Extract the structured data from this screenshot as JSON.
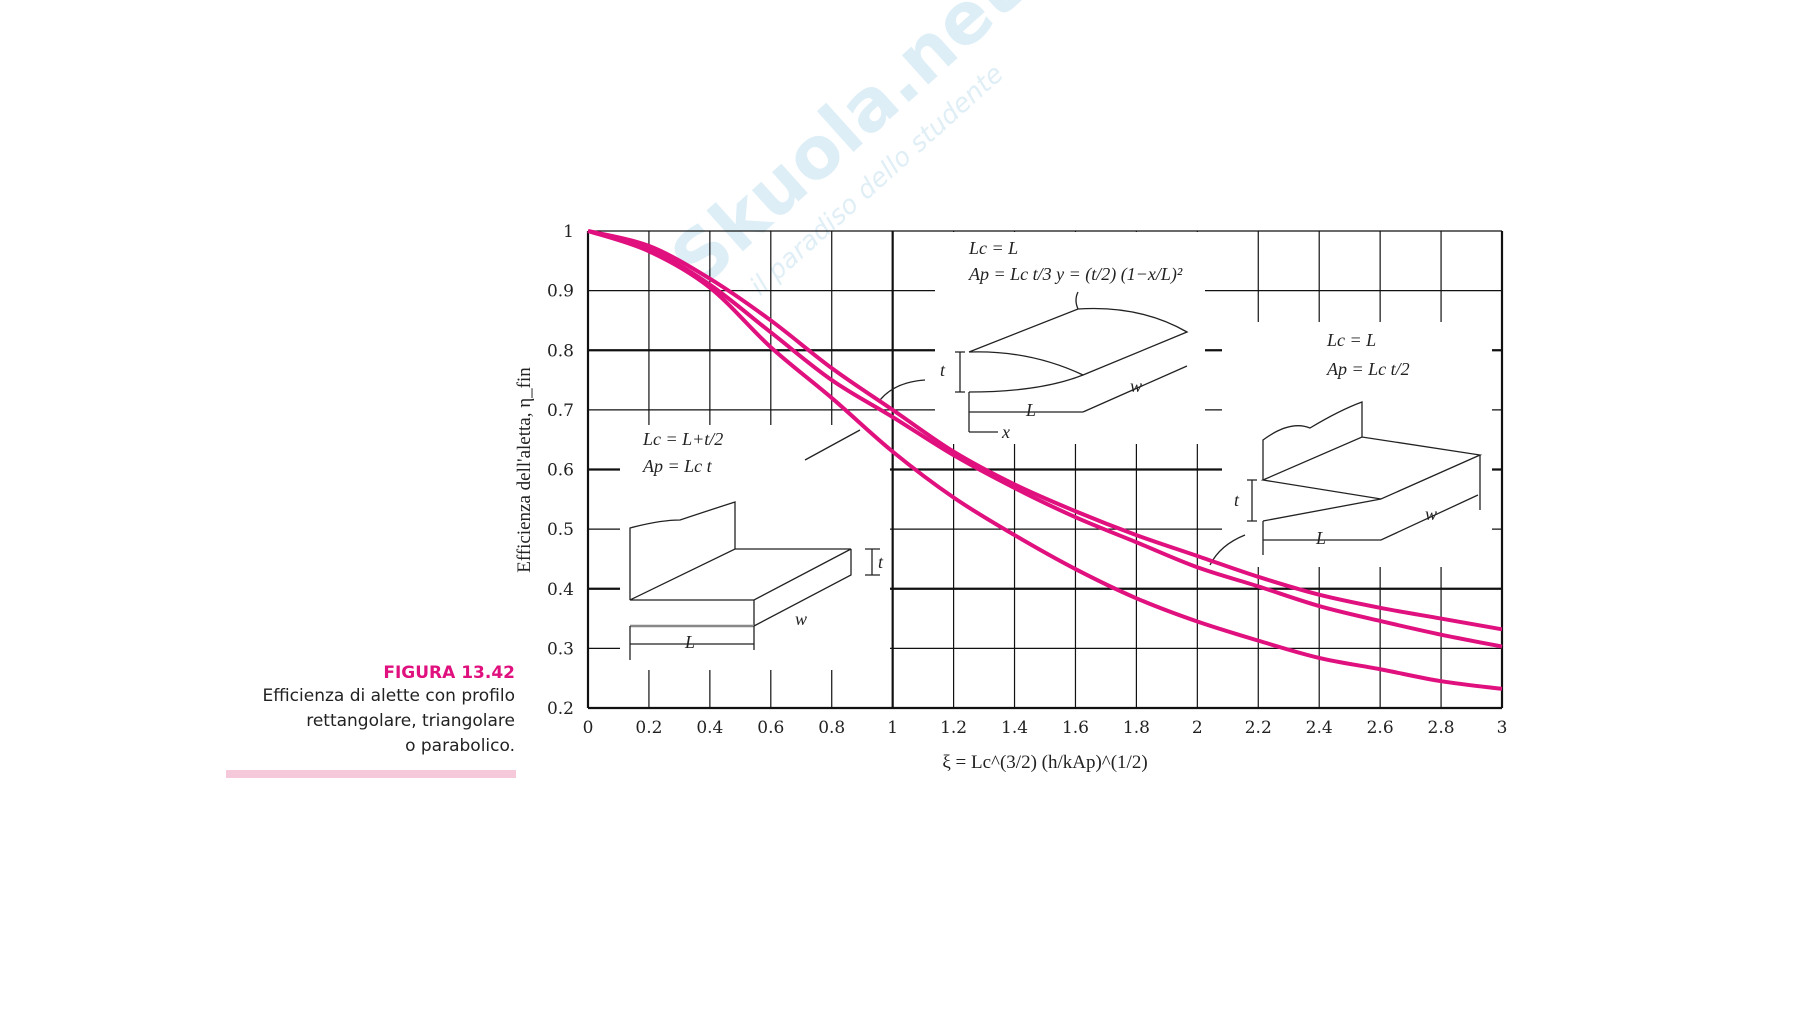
{
  "caption": {
    "figure": "FIGURA 13.42",
    "lines": [
      "Efficienza di alette con profilo",
      "rettangolare, triangolare",
      "o parabolico."
    ]
  },
  "watermark": {
    "brand": "Skuola.net",
    "tagline": "il paradiso dello studente"
  },
  "colors": {
    "curve": "#e0117f",
    "grid": "#111111",
    "caption_accent": "#e0117f",
    "bar": "#f6c9da"
  },
  "chart_data": {
    "type": "line",
    "title": "",
    "xlabel": "ξ = Lc^(3/2) (h/kAp)^(1/2)",
    "ylabel": "Efficienza dell'aletta, η_fin",
    "xlim": [
      0,
      3
    ],
    "ylim": [
      0.2,
      1
    ],
    "grid": true,
    "x_ticks": [
      "0",
      "0.2",
      "0.4",
      "0.6",
      "0.8",
      "1",
      "1.2",
      "1.4",
      "1.6",
      "1.8",
      "2",
      "2.2",
      "2.4",
      "2.6",
      "2.8",
      "3"
    ],
    "y_ticks": [
      "0.2",
      "0.3",
      "0.4",
      "0.5",
      "0.6",
      "0.7",
      "0.8",
      "0.9",
      "1"
    ],
    "x": [
      0,
      0.2,
      0.4,
      0.6,
      0.8,
      1.0,
      1.2,
      1.4,
      1.6,
      1.8,
      2.0,
      2.2,
      2.4,
      2.6,
      2.8,
      3.0
    ],
    "series": [
      {
        "name": "rettangolare",
        "values": [
          1,
          0.975,
          0.92,
          0.85,
          0.77,
          0.7,
          0.63,
          0.575,
          0.53,
          0.49,
          0.455,
          0.42,
          0.39,
          0.368,
          0.35,
          0.332
        ]
      },
      {
        "name": "triangolare",
        "values": [
          1,
          0.97,
          0.91,
          0.83,
          0.75,
          0.688,
          0.624,
          0.569,
          0.52,
          0.478,
          0.436,
          0.404,
          0.371,
          0.346,
          0.323,
          0.303
        ]
      },
      {
        "name": "parabolico",
        "values": [
          1,
          0.966,
          0.905,
          0.805,
          0.72,
          0.63,
          0.553,
          0.49,
          0.433,
          0.384,
          0.345,
          0.313,
          0.284,
          0.265,
          0.245,
          0.232
        ]
      }
    ],
    "annotations": {
      "rectangular": {
        "lc": "Lc = L+t/2",
        "ap": "Ap = Lc t",
        "dims": [
          "t",
          "w",
          "L"
        ]
      },
      "parabolic": {
        "lc": "Lc = L",
        "ap": "Ap = Lc t/3   y = (t/2) (1−x/L)²",
        "dims": [
          "t",
          "w",
          "L",
          "x"
        ]
      },
      "triangular": {
        "lc": "Lc = L",
        "ap": "Ap = Lc t/2",
        "dims": [
          "t",
          "w",
          "L"
        ]
      }
    }
  }
}
